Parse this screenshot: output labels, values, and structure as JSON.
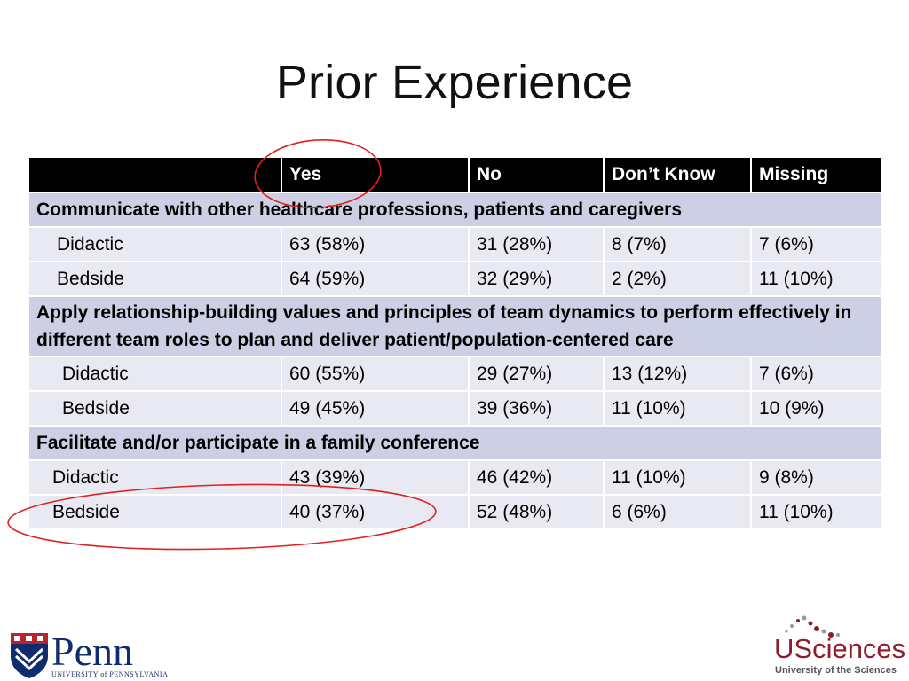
{
  "title": "Prior Experience",
  "table": {
    "headers": [
      "",
      "Yes",
      "No",
      "Don’t Know",
      "Missing"
    ],
    "sections": [
      {
        "label": "Communicate with other healthcare professions, patients and caregivers",
        "rows": [
          {
            "label": "Didactic",
            "yes": "63 (58%)",
            "no": "31 (28%)",
            "dont_know": "8 (7%)",
            "missing": "7 (6%)"
          },
          {
            "label": "Bedside",
            "yes": "64 (59%)",
            "no": "32 (29%)",
            "dont_know": "2 (2%)",
            "missing": "11 (10%)"
          }
        ]
      },
      {
        "label": "Apply relationship-building values and principles of team dynamics to perform effectively in different team roles to plan and deliver patient/population-centered care",
        "rows": [
          {
            "label": "Didactic",
            "yes": "60 (55%)",
            "no": "29 (27%)",
            "dont_know": "13 (12%)",
            "missing": "7 (6%)"
          },
          {
            "label": "Bedside",
            "yes": "49 (45%)",
            "no": "39 (36%)",
            "dont_know": "11 (10%)",
            "missing": "10 (9%)"
          }
        ]
      },
      {
        "label": "Facilitate and/or participate in a family conference",
        "rows": [
          {
            "label": "Didactic",
            "yes": "43 (39%)",
            "no": "46 (42%)",
            "dont_know": "11 (10%)",
            "missing": "9 (8%)"
          },
          {
            "label": "Bedside",
            "yes": "40 (37%)",
            "no": "52 (48%)",
            "dont_know": "6 (6%)",
            "missing": "11 (10%)"
          }
        ]
      }
    ]
  },
  "logos": {
    "penn": {
      "name": "Penn",
      "subtitle": "UNIVERSITY of PENNSYLVANIA"
    },
    "usciences": {
      "name": "USciences",
      "subtitle": "University of the Sciences"
    }
  },
  "colors": {
    "header_bg": "#000000",
    "section_bg": "#cdd0e4",
    "row_bg": "#e8e9f2",
    "annotation": "#e02020",
    "penn_blue": "#0f2d6e",
    "usciences_red": "#8c1d2c"
  }
}
